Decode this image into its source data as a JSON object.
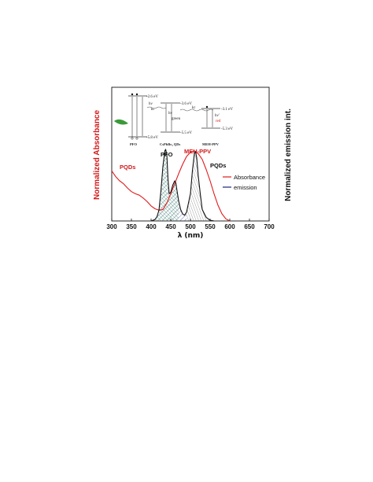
{
  "chart_data": {
    "type": "line",
    "xlabel": "λ (nm)",
    "ylabel_left": "Normalized Absorbance",
    "ylabel_right": "Normalized emission int.",
    "xlim": [
      300,
      700
    ],
    "xticks": [
      "300",
      "350",
      "400",
      "450",
      "500",
      "550",
      "600",
      "650",
      "700"
    ],
    "ylim": [
      0,
      1
    ],
    "grid": false,
    "legend_position": "right",
    "legend": [
      {
        "label": "Absorbance",
        "color": "#e01b1b"
      },
      {
        "label": "emission",
        "color": "#1a237e"
      }
    ],
    "annotations": {
      "pqds_abs": "PQDs",
      "pfo": "PFO",
      "meh_ppv": "MEH-PPV",
      "pqds_em": "PQDs"
    },
    "series": [
      {
        "kind": "absorbance",
        "color": "#e01b1b",
        "x": [
          300,
          310,
          320,
          330,
          340,
          350,
          360,
          370,
          380,
          390,
          400,
          410,
          420,
          430,
          440,
          450,
          460,
          470,
          480,
          490,
          500,
          510,
          520,
          530,
          540,
          550,
          560,
          570,
          580,
          590,
          600
        ],
        "y": [
          0.7,
          0.62,
          0.56,
          0.52,
          0.46,
          0.41,
          0.38,
          0.36,
          0.32,
          0.27,
          0.21,
          0.17,
          0.15,
          0.16,
          0.25,
          0.38,
          0.52,
          0.66,
          0.79,
          0.9,
          0.96,
          0.98,
          0.94,
          0.86,
          0.72,
          0.56,
          0.38,
          0.22,
          0.1,
          0.03,
          0.0
        ]
      },
      {
        "kind": "emission",
        "color": "#111111",
        "x": [
          400,
          410,
          415,
          420,
          425,
          430,
          435,
          437,
          440,
          443,
          446,
          450,
          455,
          460,
          463,
          466,
          470,
          475,
          480,
          485,
          490,
          500,
          505,
          510,
          513,
          516,
          520,
          525,
          530,
          540,
          550,
          560
        ],
        "y": [
          0.0,
          0.02,
          0.06,
          0.15,
          0.42,
          0.76,
          0.98,
          1.0,
          0.93,
          0.58,
          0.38,
          0.4,
          0.5,
          0.56,
          0.53,
          0.42,
          0.28,
          0.16,
          0.1,
          0.08,
          0.12,
          0.38,
          0.7,
          0.94,
          0.97,
          0.88,
          0.62,
          0.38,
          0.16,
          0.05,
          0.01,
          0.0
        ]
      }
    ],
    "inset": {
      "materials": [
        "PFO",
        "CsPbBr₃ QDs",
        "MEH-PPV"
      ],
      "levels": [
        "-2.6 eV",
        "-5.8 eV",
        "-3.6 eV",
        "-5.5 eV",
        "-3.1 eV",
        "-5.3 eV"
      ],
      "labels": [
        "hν",
        "kr",
        "hν",
        "green",
        "kr",
        "hν'",
        "red"
      ]
    }
  }
}
